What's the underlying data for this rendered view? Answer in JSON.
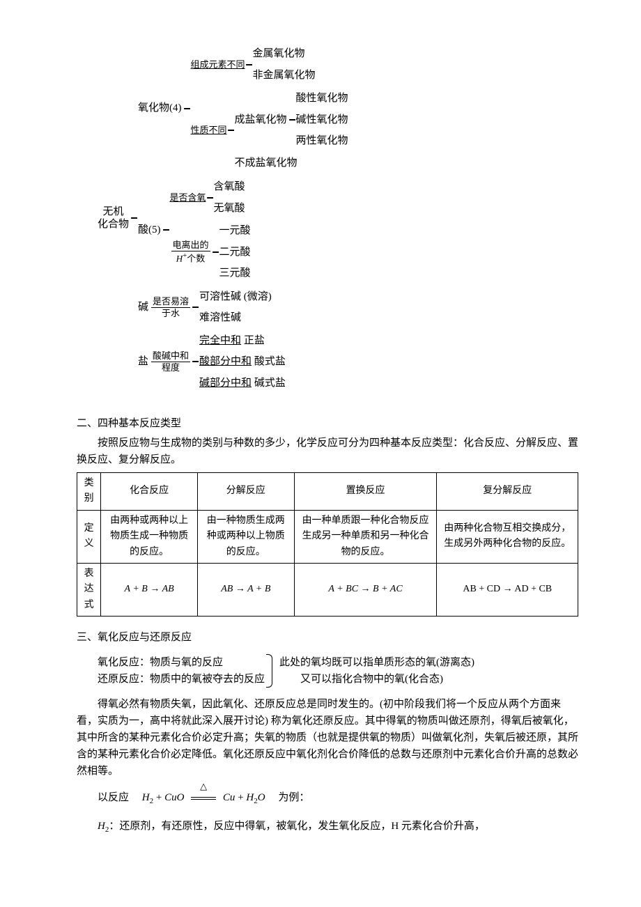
{
  "tree": {
    "root": "无机\n化合物",
    "oxide": {
      "label": "氧化物(4)",
      "branch1": {
        "criterion": "组成元素不同",
        "items": [
          "金属氧化物",
          "非金属氧化物"
        ]
      },
      "branch2": {
        "criterion": "性质不同",
        "salt": {
          "label": "成盐氧化物",
          "items": [
            "酸性氧化物",
            "碱性氧化物",
            "两性氧化物"
          ]
        },
        "nonsalt": "不成盐氧化物"
      }
    },
    "acid": {
      "label": "酸(5)",
      "branch1": {
        "criterion": "是否含氧",
        "items": [
          "含氧酸",
          "无氧酸"
        ]
      },
      "branch2": {
        "criterion_top": "电离出的",
        "criterion_bot": "H⁺个数",
        "items": [
          "一元酸",
          "二元酸",
          "三元酸"
        ]
      }
    },
    "base": {
      "label": "碱",
      "criterion_top": "是否易溶",
      "criterion_bot": "于水",
      "items": [
        "可溶性碱 (微溶)",
        "难溶性碱"
      ]
    },
    "salt": {
      "label": "盐",
      "criterion_top": "酸碱中和",
      "criterion_bot": "程度",
      "items": [
        {
          "u": "完全中和",
          "rest": " 正盐"
        },
        {
          "u": "酸部分中和",
          "rest": " 酸式盐"
        },
        {
          "u": "碱部分中和",
          "rest": " 碱式盐"
        }
      ]
    }
  },
  "section2": {
    "heading": "二、四种基本反应类型",
    "intro": "按照反应物与生成物的类别与种数的多少，化学反应可分为四种基本反应类型：化合反应、分解反应、置换反应、复分解反应。",
    "table": {
      "headers": [
        "类别",
        "化合反应",
        "分解反应",
        "置换反应",
        "复分解反应"
      ],
      "def_label": "定\n义",
      "defs": [
        "由两种或两种以上物质生成一种物质的反应。",
        "由一种物质生成两种或两种以上物质的反应。",
        "由一种单质跟一种化合物反应生成另一种单质和另一种化合物的反应。",
        "由两种化合物互相交换成分，生成另外两种化合物的反应。"
      ],
      "expr_label": "表达式",
      "exprs": [
        "A + B → AB",
        "AB → A + B",
        "A + BC → B + AC",
        "AB + CD → AD + CB"
      ]
    }
  },
  "section3": {
    "heading": "三、氧化反应与还原反应",
    "pair": {
      "line1": "氧化反应：物质与氧的反应",
      "line2": "还原反应：物质中的氧被夺去的反应",
      "note1": "此处的氧均既可以指单质形态的氧(游离态)",
      "note2": "又可以指化合物中的氧(化合态)"
    },
    "para": "得氧必然有物质失氧，因此氧化、还原反应总是同时发生的。(初中阶段我们将一个反应从两个方面来看，实质为一，高中将就此深入展开讨论) 称为氧化还原反应。其中得氧的物质叫做还原剂，得氧后被氧化，其中所含的某种元素化合价必定升高；失氧的物质（也就是提供氧的物质）叫做氧化剂，失氧后被还原，其所含的某种元素化合价必定降低。氧化还原反应中氧化剂化合价降低的总数与还原剂中元素化合价升高的总数必然相等。",
    "eq_prefix": "以反应",
    "eq_suffix": "为例：",
    "eq": {
      "lhs1": "H",
      "lhs1sub": "2",
      "plus": " + ",
      "lhs2": "CuO",
      "rhs1": "Cu",
      "rhs2": "H",
      "rhs2sub": "2",
      "rhs3": "O"
    },
    "tail": "：还原剂，有还原性，反应中得氧，被氧化，发生氧化反应，H 元素化合价升高，",
    "tail_prefix": "H₂"
  }
}
